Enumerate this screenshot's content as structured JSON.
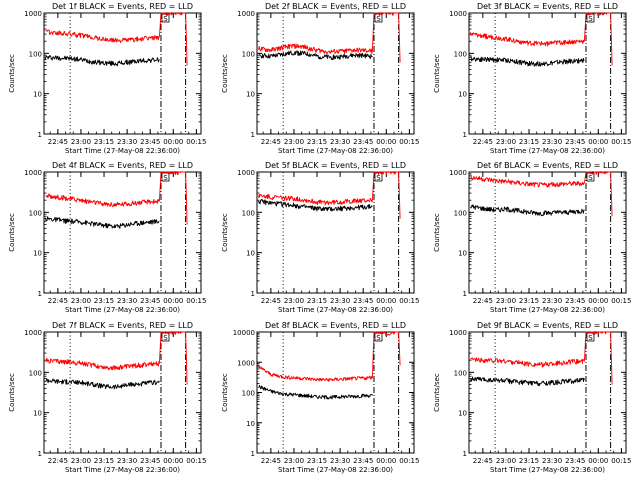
{
  "figure": {
    "colors": {
      "events": "#000000",
      "lld": "#ff0000",
      "axes": "#000000"
    },
    "ylabel": "Counts/sec",
    "xlabel": "Start Time (27-May-08 22:36:00)",
    "x_tick_labels": [
      "22:45",
      "23:00",
      "23:15",
      "23:30",
      "23:45",
      "00:00",
      "00:15"
    ],
    "y_tick_labels": [
      "1",
      "10",
      "100",
      "1000",
      "10000"
    ],
    "markers": {
      "vlines_dotted": "22:53",
      "vlines_dashdot": [
        "23:52",
        "00:08"
      ],
      "boxed_letter": "S"
    }
  },
  "chart_data": [
    {
      "type": "line",
      "title": "Det 1f BLACK = Events, RED = LLD",
      "xlim": [
        "22:36",
        "00:18"
      ],
      "ylim": [
        1,
        1000
      ],
      "log_y": true,
      "xlabel": "Start Time (27-May-08 22:36:00)",
      "ylabel": "Counts/sec",
      "series": [
        {
          "color": "#000000",
          "x": [
            "22:37",
            "22:45",
            "22:53",
            "23:00",
            "23:08",
            "23:15",
            "23:23",
            "23:30",
            "23:38",
            "23:45",
            "23:51"
          ],
          "values": [
            80,
            78,
            75,
            70,
            62,
            58,
            56,
            60,
            65,
            68,
            70
          ]
        },
        {
          "color": "#ff0000",
          "x": [
            "22:37",
            "22:45",
            "22:53",
            "23:00",
            "23:08",
            "23:15",
            "23:23",
            "23:30",
            "23:38",
            "23:45",
            "23:51",
            "23:52",
            "23:54",
            "23:57",
            "00:01",
            "00:06",
            "00:08",
            "00:09"
          ],
          "values": [
            340,
            320,
            300,
            280,
            250,
            220,
            210,
            215,
            225,
            240,
            255,
            1000,
            1000,
            1000,
            1000,
            1000,
            1000,
            50
          ]
        }
      ]
    },
    {
      "type": "line",
      "title": "Det 2f BLACK = Events, RED = LLD",
      "xlim": [
        "22:36",
        "00:18"
      ],
      "ylim": [
        1,
        1000
      ],
      "log_y": true,
      "xlabel": "Start Time (27-May-08 22:36:00)",
      "ylabel": "Counts/sec",
      "series": [
        {
          "color": "#000000",
          "x": [
            "22:37",
            "22:45",
            "22:53",
            "23:00",
            "23:08",
            "23:15",
            "23:23",
            "23:30",
            "23:38",
            "23:45",
            "23:51"
          ],
          "values": [
            90,
            85,
            95,
            105,
            98,
            85,
            80,
            82,
            90,
            88,
            85
          ]
        },
        {
          "color": "#ff0000",
          "x": [
            "22:37",
            "22:45",
            "22:53",
            "23:00",
            "23:08",
            "23:15",
            "23:23",
            "23:30",
            "23:38",
            "23:45",
            "23:51",
            "23:52",
            "23:54",
            "23:57",
            "00:01",
            "00:06",
            "00:08",
            "00:09"
          ],
          "values": [
            130,
            120,
            140,
            155,
            140,
            120,
            110,
            112,
            120,
            118,
            115,
            1000,
            1000,
            1000,
            1000,
            1000,
            1000,
            60
          ]
        }
      ]
    },
    {
      "type": "line",
      "title": "Det 3f BLACK = Events, RED = LLD",
      "xlim": [
        "22:36",
        "00:18"
      ],
      "ylim": [
        1,
        1000
      ],
      "log_y": true,
      "xlabel": "Start Time (27-May-08 22:36:00)",
      "ylabel": "Counts/sec",
      "series": [
        {
          "color": "#000000",
          "x": [
            "22:37",
            "22:45",
            "22:53",
            "23:00",
            "23:08",
            "23:15",
            "23:23",
            "23:30",
            "23:38",
            "23:45",
            "23:51"
          ],
          "values": [
            75,
            72,
            70,
            68,
            62,
            56,
            55,
            58,
            62,
            65,
            68
          ]
        },
        {
          "color": "#ff0000",
          "x": [
            "22:37",
            "22:45",
            "22:53",
            "23:00",
            "23:08",
            "23:15",
            "23:23",
            "23:30",
            "23:38",
            "23:45",
            "23:51",
            "23:52",
            "23:54",
            "23:57",
            "00:01",
            "00:06",
            "00:08",
            "00:09"
          ],
          "values": [
            300,
            270,
            250,
            230,
            200,
            180,
            175,
            180,
            190,
            195,
            200,
            1000,
            1000,
            1000,
            1000,
            1000,
            1000,
            50
          ]
        }
      ]
    },
    {
      "type": "line",
      "title": "Det 4f BLACK = Events, RED = LLD",
      "xlim": [
        "22:36",
        "00:18"
      ],
      "ylim": [
        1,
        1000
      ],
      "log_y": true,
      "xlabel": "Start Time (27-May-08 22:36:00)",
      "ylabel": "Counts/sec",
      "series": [
        {
          "color": "#000000",
          "x": [
            "22:37",
            "22:45",
            "22:53",
            "23:00",
            "23:08",
            "23:15",
            "23:23",
            "23:30",
            "23:38",
            "23:45",
            "23:51"
          ],
          "values": [
            70,
            65,
            60,
            58,
            52,
            48,
            45,
            50,
            55,
            58,
            60
          ]
        },
        {
          "color": "#ff0000",
          "x": [
            "22:37",
            "22:45",
            "22:53",
            "23:00",
            "23:08",
            "23:15",
            "23:23",
            "23:30",
            "23:38",
            "23:45",
            "23:51",
            "23:52",
            "23:54",
            "23:57",
            "00:01",
            "00:06",
            "00:08",
            "00:09"
          ],
          "values": [
            260,
            240,
            220,
            200,
            180,
            160,
            155,
            165,
            175,
            185,
            190,
            1000,
            1000,
            1000,
            1000,
            1000,
            1000,
            50
          ]
        }
      ]
    },
    {
      "type": "line",
      "title": "Det 5f BLACK = Events, RED = LLD",
      "xlim": [
        "22:36",
        "00:18"
      ],
      "ylim": [
        1,
        1000
      ],
      "log_y": true,
      "xlabel": "Start Time (27-May-08 22:36:00)",
      "ylabel": "Counts/sec",
      "series": [
        {
          "color": "#000000",
          "x": [
            "22:37",
            "22:45",
            "22:53",
            "23:00",
            "23:08",
            "23:15",
            "23:23",
            "23:30",
            "23:38",
            "23:45",
            "23:51"
          ],
          "values": [
            190,
            170,
            160,
            150,
            135,
            125,
            120,
            125,
            130,
            135,
            140
          ]
        },
        {
          "color": "#ff0000",
          "x": [
            "22:37",
            "22:45",
            "22:53",
            "23:00",
            "23:08",
            "23:15",
            "23:23",
            "23:30",
            "23:38",
            "23:45",
            "23:51",
            "23:52",
            "23:54",
            "23:57",
            "00:01",
            "00:06",
            "00:08",
            "00:09"
          ],
          "values": [
            260,
            240,
            230,
            220,
            200,
            180,
            175,
            180,
            190,
            195,
            200,
            1000,
            1000,
            1000,
            1000,
            1000,
            1000,
            70
          ]
        }
      ]
    },
    {
      "type": "line",
      "title": "Det 6f BLACK = Events, RED = LLD",
      "xlim": [
        "22:36",
        "00:18"
      ],
      "ylim": [
        1,
        1000
      ],
      "log_y": true,
      "xlabel": "Start Time (27-May-08 22:36:00)",
      "ylabel": "Counts/sec",
      "series": [
        {
          "color": "#000000",
          "x": [
            "22:37",
            "22:45",
            "22:53",
            "23:00",
            "23:08",
            "23:15",
            "23:23",
            "23:30",
            "23:38",
            "23:45",
            "23:51"
          ],
          "values": [
            140,
            125,
            115,
            120,
            110,
            100,
            95,
            98,
            100,
            105,
            110
          ]
        },
        {
          "color": "#ff0000",
          "x": [
            "22:37",
            "22:45",
            "22:53",
            "23:00",
            "23:08",
            "23:15",
            "23:23",
            "23:30",
            "23:38",
            "23:45",
            "23:51",
            "23:52",
            "23:54",
            "23:57",
            "00:01",
            "00:06",
            "00:08",
            "00:09"
          ],
          "values": [
            750,
            680,
            620,
            580,
            540,
            500,
            480,
            490,
            510,
            520,
            530,
            1000,
            1000,
            1000,
            1000,
            1000,
            1000,
            80
          ]
        }
      ]
    },
    {
      "type": "line",
      "title": "Det 7f BLACK = Events, RED = LLD",
      "xlim": [
        "22:36",
        "00:18"
      ],
      "ylim": [
        1,
        1000
      ],
      "log_y": true,
      "xlabel": "Start Time (27-May-08 22:36:00)",
      "ylabel": "Counts/sec",
      "series": [
        {
          "color": "#000000",
          "x": [
            "22:37",
            "22:45",
            "22:53",
            "23:00",
            "23:08",
            "23:15",
            "23:23",
            "23:30",
            "23:38",
            "23:45",
            "23:51"
          ],
          "values": [
            65,
            60,
            58,
            56,
            50,
            45,
            44,
            48,
            52,
            55,
            57
          ]
        },
        {
          "color": "#ff0000",
          "x": [
            "22:37",
            "22:45",
            "22:53",
            "23:00",
            "23:08",
            "23:15",
            "23:23",
            "23:30",
            "23:38",
            "23:45",
            "23:51",
            "23:52",
            "23:54",
            "23:57",
            "00:01",
            "00:06",
            "00:08",
            "00:09"
          ],
          "values": [
            200,
            190,
            180,
            170,
            150,
            135,
            130,
            140,
            150,
            160,
            165,
            1000,
            1000,
            1000,
            1000,
            1000,
            1000,
            50
          ]
        }
      ]
    },
    {
      "type": "line",
      "title": "Det 8f BLACK = Events, RED = LLD",
      "xlim": [
        "22:36",
        "00:18"
      ],
      "ylim": [
        1,
        10000
      ],
      "log_y": true,
      "xlabel": "Start Time (27-May-08 22:36:00)",
      "ylabel": "Counts/sec",
      "series": [
        {
          "color": "#000000",
          "x": [
            "22:37",
            "22:45",
            "22:53",
            "23:00",
            "23:08",
            "23:15",
            "23:23",
            "23:30",
            "23:38",
            "23:45",
            "23:51"
          ],
          "values": [
            160,
            110,
            90,
            85,
            78,
            72,
            70,
            72,
            75,
            78,
            80
          ]
        },
        {
          "color": "#ff0000",
          "x": [
            "22:37",
            "22:45",
            "22:53",
            "23:00",
            "23:08",
            "23:15",
            "23:23",
            "23:30",
            "23:38",
            "23:45",
            "23:51",
            "23:52",
            "23:54",
            "23:57",
            "00:01",
            "00:06",
            "00:08",
            "00:09"
          ],
          "values": [
            700,
            400,
            330,
            310,
            290,
            270,
            265,
            275,
            290,
            300,
            310,
            10000,
            10000,
            10000,
            8000,
            10000,
            10000,
            800
          ]
        }
      ]
    },
    {
      "type": "line",
      "title": "Det 9f BLACK = Events, RED = LLD",
      "xlim": [
        "22:36",
        "00:18"
      ],
      "ylim": [
        1,
        1000
      ],
      "log_y": true,
      "xlabel": "Start Time (27-May-08 22:36:00)",
      "ylabel": "Counts/sec",
      "series": [
        {
          "color": "#000000",
          "x": [
            "22:37",
            "22:45",
            "22:53",
            "23:00",
            "23:08",
            "23:15",
            "23:23",
            "23:30",
            "23:38",
            "23:45",
            "23:51"
          ],
          "values": [
            70,
            66,
            64,
            62,
            58,
            55,
            54,
            56,
            60,
            62,
            64
          ]
        },
        {
          "color": "#ff0000",
          "x": [
            "22:37",
            "22:45",
            "22:53",
            "23:00",
            "23:08",
            "23:15",
            "23:23",
            "23:30",
            "23:38",
            "23:45",
            "23:51",
            "23:52",
            "23:54",
            "23:57",
            "00:01",
            "00:06",
            "00:08",
            "00:09"
          ],
          "values": [
            210,
            200,
            195,
            190,
            175,
            160,
            155,
            165,
            175,
            185,
            190,
            1000,
            1000,
            1000,
            1000,
            1000,
            1000,
            50
          ]
        }
      ]
    }
  ]
}
